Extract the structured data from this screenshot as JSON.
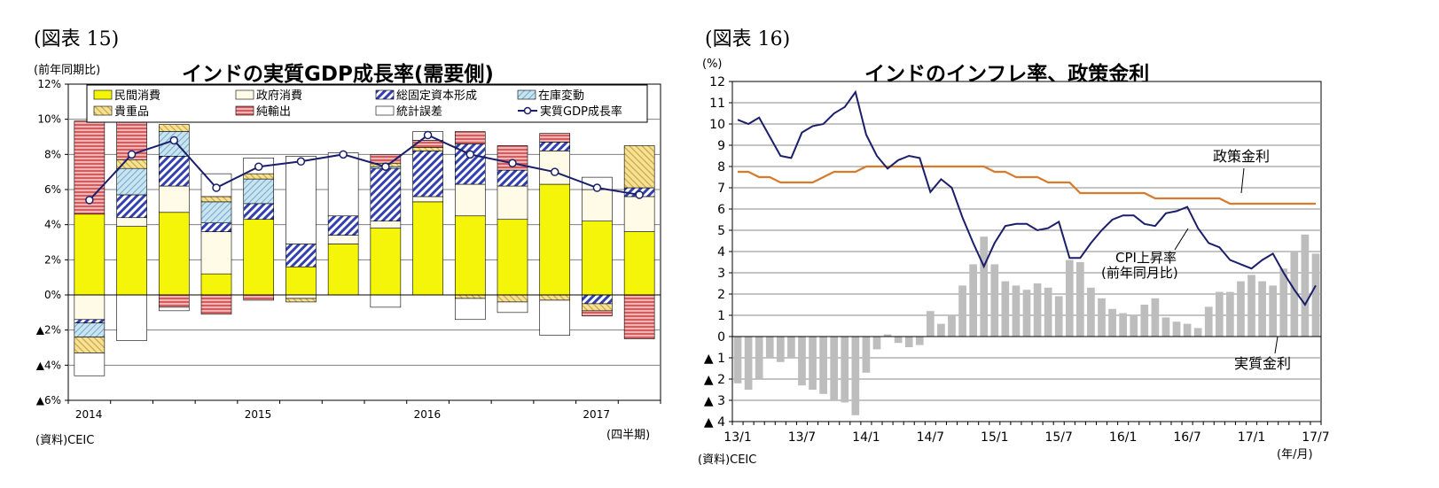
{
  "left": {
    "figure_label": "(図表 15)",
    "unit": "(前年同期比)",
    "source": "(資料)CEIC",
    "period_note": "(四半期)",
    "chart_data": {
      "type": "bar",
      "stacked": true,
      "title": "インドの実質GDP成長率(需要側)",
      "ylim": [
        -6,
        12
      ],
      "y_ticks": [
        "12%",
        "10%",
        "8%",
        "6%",
        "4%",
        "2%",
        "0%",
        "▲2%",
        "▲4%",
        "▲6%"
      ],
      "year_labels": [
        "2014",
        "2015",
        "2016",
        "2017"
      ],
      "legend_location": "top-center",
      "categories": [
        "2014Q1",
        "2014Q2",
        "2014Q3",
        "2014Q4",
        "2015Q1",
        "2015Q2",
        "2015Q3",
        "2015Q4",
        "2016Q1",
        "2016Q2",
        "2016Q3",
        "2016Q4",
        "2017Q1",
        "2017Q2"
      ],
      "series": [
        {
          "name": "民間消費",
          "color": "#f5f50a",
          "values": [
            4.6,
            3.9,
            4.7,
            1.2,
            4.3,
            1.6,
            2.9,
            3.8,
            5.3,
            4.5,
            4.3,
            6.3,
            4.2,
            3.6
          ]
        },
        {
          "name": "政府消費",
          "color": "#fffbe6",
          "values": [
            -1.4,
            0.5,
            1.5,
            2.4,
            0.0,
            -0.2,
            0.5,
            0.4,
            0.3,
            1.8,
            1.9,
            1.9,
            1.8,
            2.0
          ]
        },
        {
          "name": "総固定資本形成",
          "color": "#3340b0",
          "values": [
            -0.2,
            1.3,
            1.7,
            0.5,
            0.9,
            1.3,
            1.1,
            3.0,
            2.6,
            2.3,
            0.9,
            0.5,
            -0.5,
            0.5
          ]
        },
        {
          "name": "在庫変動",
          "color": "#c6e4f2",
          "values": [
            -0.8,
            1.5,
            1.4,
            1.2,
            1.4,
            0.0,
            0.0,
            0.1,
            0.0,
            0.0,
            0.0,
            0.0,
            0.0,
            0.0
          ]
        },
        {
          "name": "貴重品",
          "color": "#f3da83",
          "values": [
            -0.9,
            0.5,
            0.4,
            0.3,
            0.3,
            -0.2,
            0.0,
            0.2,
            0.2,
            -0.2,
            -0.4,
            -0.3,
            -0.4,
            2.4
          ]
        },
        {
          "name": "純輸出",
          "color": "#d26064",
          "values": [
            5.3,
            2.9,
            -0.7,
            -1.1,
            -0.3,
            0.0,
            0.0,
            0.5,
            0.4,
            0.7,
            1.4,
            0.5,
            -0.3,
            -2.5
          ]
        },
        {
          "name": "統計誤差",
          "color": "#ffffff",
          "values": [
            -1.3,
            -2.6,
            -0.2,
            1.3,
            0.9,
            5.0,
            3.6,
            -0.7,
            0.5,
            -1.2,
            -0.6,
            -2.0,
            0.7,
            0.0
          ]
        }
      ],
      "line": {
        "name": "実質GDP成長率",
        "color": "#1b1f6a",
        "values": [
          5.4,
          8.0,
          8.8,
          6.1,
          7.3,
          7.6,
          8.0,
          7.3,
          9.1,
          8.0,
          7.5,
          7.0,
          6.1,
          5.7
        ]
      }
    }
  },
  "right": {
    "figure_label": "(図表 16)",
    "unit": "(%)",
    "source": "(資料)CEIC",
    "period_note": "(年/月)",
    "chart_data": {
      "type": "line",
      "title": "インドのインフレ率、政策金利",
      "ylim": [
        -4,
        12
      ],
      "y_ticks": [
        "12",
        "11",
        "10",
        "9",
        "8",
        "7",
        "6",
        "5",
        "4",
        "3",
        "2",
        "1",
        "0",
        "▲ 1",
        "▲ 2",
        "▲ 3",
        "▲ 4"
      ],
      "x_tick_labels": [
        "13/1",
        "13/7",
        "14/1",
        "14/7",
        "15/1",
        "15/7",
        "16/1",
        "16/7",
        "17/1",
        "17/7"
      ],
      "months": 55,
      "start": "2013/01",
      "annotations": {
        "policy": "政策金利",
        "cpi_line1": "CPI上昇率",
        "cpi_line2": "(前年同月比)",
        "real": "実質金利"
      },
      "series": [
        {
          "name": "CPI上昇率(前年同月比)",
          "type": "line",
          "color": "#1b1f6a",
          "values": [
            10.2,
            10.0,
            10.3,
            9.4,
            8.5,
            8.4,
            9.6,
            9.9,
            10.0,
            10.5,
            10.8,
            11.5,
            9.5,
            8.5,
            7.9,
            8.3,
            8.5,
            8.4,
            6.8,
            7.4,
            7.0,
            5.6,
            4.4,
            3.3,
            4.4,
            5.2,
            5.3,
            5.3,
            5.0,
            5.1,
            5.4,
            3.7,
            3.7,
            4.4,
            5.0,
            5.5,
            5.7,
            5.7,
            5.3,
            5.2,
            5.8,
            5.9,
            6.1,
            5.1,
            4.4,
            4.2,
            3.6,
            3.4,
            3.2,
            3.6,
            3.9,
            3.0,
            2.2,
            1.5,
            2.4
          ]
        },
        {
          "name": "政策金利",
          "type": "line",
          "color": "#d77a2c",
          "values": [
            7.75,
            7.75,
            7.5,
            7.5,
            7.25,
            7.25,
            7.25,
            7.25,
            7.5,
            7.75,
            7.75,
            7.75,
            8.0,
            8.0,
            8.0,
            8.0,
            8.0,
            8.0,
            8.0,
            8.0,
            8.0,
            8.0,
            8.0,
            8.0,
            7.75,
            7.75,
            7.5,
            7.5,
            7.5,
            7.25,
            7.25,
            7.25,
            6.75,
            6.75,
            6.75,
            6.75,
            6.75,
            6.75,
            6.75,
            6.5,
            6.5,
            6.5,
            6.5,
            6.5,
            6.5,
            6.5,
            6.25,
            6.25,
            6.25,
            6.25,
            6.25,
            6.25,
            6.25,
            6.25,
            6.25
          ]
        },
        {
          "name": "実質金利",
          "type": "bar",
          "color": "#bdbdbd",
          "values": [
            -2.2,
            -2.5,
            -2.0,
            -1.0,
            -1.2,
            -1.0,
            -2.3,
            -2.5,
            -2.7,
            -3.0,
            -3.1,
            -3.7,
            -1.7,
            -0.6,
            0.1,
            -0.3,
            -0.5,
            -0.4,
            1.2,
            0.6,
            1.0,
            2.4,
            3.4,
            4.7,
            3.4,
            2.6,
            2.4,
            2.2,
            2.5,
            2.3,
            1.9,
            3.6,
            3.5,
            2.3,
            1.8,
            1.3,
            1.1,
            1.0,
            1.5,
            1.8,
            0.9,
            0.7,
            0.6,
            0.4,
            1.4,
            2.1,
            2.1,
            2.6,
            2.9,
            2.6,
            2.4,
            3.2,
            4.0,
            4.8,
            3.9
          ]
        }
      ]
    }
  }
}
